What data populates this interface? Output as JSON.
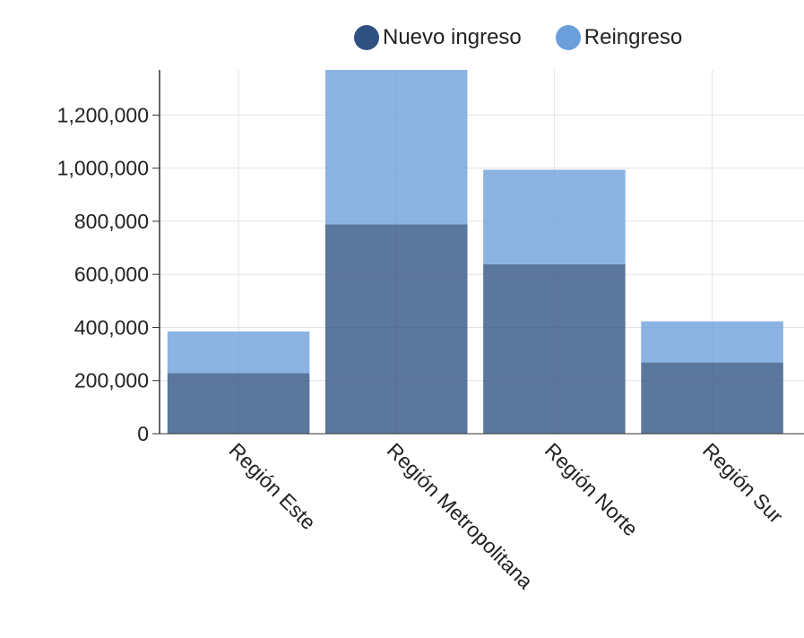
{
  "chart_data": {
    "type": "bar",
    "stacked": true,
    "categories": [
      "Región Este",
      "Región Metropolitana",
      "Región Norte",
      "Región Sur"
    ],
    "series": [
      {
        "name": "Nuevo ingreso",
        "color": "#2e5182",
        "values": [
          228000,
          788000,
          638000,
          268000
        ]
      },
      {
        "name": "Reingreso",
        "color": "#6a9fdb",
        "values": [
          157000,
          582000,
          356000,
          155000
        ]
      }
    ],
    "yticks": [
      "0",
      "200,000",
      "400,000",
      "600,000",
      "800,000",
      "1,000,000",
      "1,200,000"
    ],
    "ylim": [
      0,
      1370000
    ],
    "grid": true,
    "legend_position": "top-right"
  }
}
